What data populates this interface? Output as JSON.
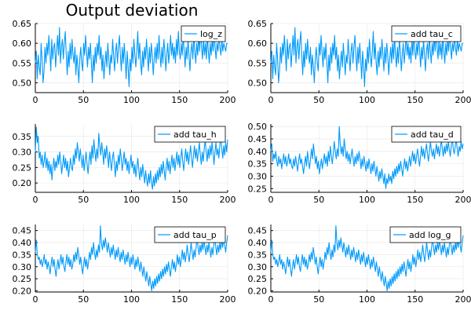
{
  "figure": {
    "title": "Output deviation"
  },
  "chart_data": [
    {
      "type": "line",
      "legend": "log_z",
      "legend_position": "top-right",
      "grid": true,
      "color": "#009AFA",
      "xlim": [
        0,
        200
      ],
      "ylim": [
        0.475,
        0.65
      ],
      "xticks": [
        0,
        50,
        100,
        150,
        200
      ],
      "yticks": [
        0.5,
        0.55,
        0.6,
        0.65
      ],
      "ytick_labels": [
        "0.50",
        "0.55",
        "0.60",
        "0.65"
      ],
      "y": [
        0.55,
        0.58,
        0.51,
        0.57,
        0.54,
        0.52,
        0.6,
        0.56,
        0.5,
        0.53,
        0.59,
        0.55,
        0.6,
        0.57,
        0.62,
        0.58,
        0.53,
        0.61,
        0.56,
        0.59,
        0.6,
        0.54,
        0.58,
        0.62,
        0.57,
        0.64,
        0.55,
        0.59,
        0.61,
        0.56,
        0.6,
        0.63,
        0.57,
        0.52,
        0.58,
        0.54,
        0.6,
        0.56,
        0.61,
        0.57,
        0.55,
        0.59,
        0.52,
        0.57,
        0.54,
        0.5,
        0.56,
        0.59,
        0.55,
        0.53,
        0.6,
        0.57,
        0.62,
        0.58,
        0.54,
        0.59,
        0.56,
        0.6,
        0.55,
        0.5,
        0.57,
        0.53,
        0.59,
        0.55,
        0.6,
        0.57,
        0.62,
        0.56,
        0.59,
        0.53,
        0.57,
        0.51,
        0.55,
        0.58,
        0.54,
        0.6,
        0.56,
        0.52,
        0.57,
        0.55,
        0.61,
        0.57,
        0.53,
        0.58,
        0.6,
        0.55,
        0.59,
        0.62,
        0.57,
        0.53,
        0.59,
        0.55,
        0.6,
        0.56,
        0.51,
        0.58,
        0.54,
        0.49,
        0.56,
        0.53,
        0.59,
        0.55,
        0.61,
        0.57,
        0.54,
        0.58,
        0.63,
        0.56,
        0.6,
        0.55,
        0.52,
        0.58,
        0.54,
        0.59,
        0.56,
        0.61,
        0.57,
        0.53,
        0.59,
        0.55,
        0.6,
        0.57,
        0.52,
        0.56,
        0.59,
        0.55,
        0.6,
        0.56,
        0.62,
        0.57,
        0.54,
        0.59,
        0.55,
        0.61,
        0.58,
        0.53,
        0.57,
        0.6,
        0.55,
        0.58,
        0.62,
        0.57,
        0.6,
        0.56,
        0.59,
        0.55,
        0.61,
        0.57,
        0.63,
        0.58,
        0.56,
        0.6,
        0.57,
        0.62,
        0.58,
        0.54,
        0.59,
        0.56,
        0.61,
        0.57,
        0.53,
        0.58,
        0.6,
        0.56,
        0.62,
        0.58,
        0.55,
        0.6,
        0.57,
        0.62,
        0.58,
        0.64,
        0.59,
        0.56,
        0.61,
        0.57,
        0.6,
        0.56,
        0.62,
        0.58,
        0.55,
        0.6,
        0.57,
        0.61,
        0.58,
        0.63,
        0.59,
        0.56,
        0.6,
        0.58,
        0.62,
        0.59,
        0.57,
        0.61,
        0.58,
        0.6,
        0.59,
        0.58,
        0.6,
        0.6
      ]
    },
    {
      "type": "line",
      "legend": "add tau_c",
      "legend_position": "top-right",
      "grid": true,
      "color": "#009AFA",
      "xlim": [
        0,
        200
      ],
      "ylim": [
        0.475,
        0.65
      ],
      "xticks": [
        0,
        50,
        100,
        150,
        200
      ],
      "yticks": [
        0.5,
        0.55,
        0.6,
        0.65
      ],
      "ytick_labels": [
        "0.50",
        "0.55",
        "0.60",
        "0.65"
      ],
      "y": [
        0.55,
        0.58,
        0.51,
        0.57,
        0.54,
        0.52,
        0.6,
        0.56,
        0.5,
        0.53,
        0.59,
        0.55,
        0.6,
        0.57,
        0.62,
        0.58,
        0.53,
        0.61,
        0.56,
        0.59,
        0.6,
        0.54,
        0.58,
        0.62,
        0.57,
        0.64,
        0.55,
        0.59,
        0.61,
        0.56,
        0.6,
        0.63,
        0.57,
        0.52,
        0.58,
        0.54,
        0.6,
        0.56,
        0.61,
        0.57,
        0.55,
        0.59,
        0.52,
        0.57,
        0.54,
        0.5,
        0.56,
        0.59,
        0.55,
        0.53,
        0.6,
        0.57,
        0.62,
        0.58,
        0.54,
        0.59,
        0.56,
        0.6,
        0.55,
        0.5,
        0.57,
        0.53,
        0.59,
        0.55,
        0.6,
        0.57,
        0.62,
        0.56,
        0.59,
        0.53,
        0.57,
        0.51,
        0.55,
        0.58,
        0.54,
        0.6,
        0.56,
        0.52,
        0.57,
        0.55,
        0.61,
        0.57,
        0.53,
        0.58,
        0.6,
        0.55,
        0.59,
        0.62,
        0.57,
        0.53,
        0.59,
        0.55,
        0.6,
        0.56,
        0.51,
        0.58,
        0.54,
        0.49,
        0.56,
        0.53,
        0.59,
        0.55,
        0.61,
        0.57,
        0.54,
        0.58,
        0.63,
        0.56,
        0.6,
        0.55,
        0.52,
        0.58,
        0.54,
        0.59,
        0.56,
        0.61,
        0.57,
        0.53,
        0.59,
        0.55,
        0.6,
        0.57,
        0.52,
        0.56,
        0.59,
        0.55,
        0.6,
        0.56,
        0.62,
        0.57,
        0.54,
        0.59,
        0.55,
        0.61,
        0.58,
        0.53,
        0.57,
        0.6,
        0.55,
        0.58,
        0.62,
        0.57,
        0.6,
        0.56,
        0.59,
        0.55,
        0.61,
        0.57,
        0.63,
        0.58,
        0.56,
        0.6,
        0.57,
        0.62,
        0.58,
        0.54,
        0.59,
        0.56,
        0.61,
        0.57,
        0.53,
        0.58,
        0.6,
        0.56,
        0.62,
        0.58,
        0.55,
        0.6,
        0.57,
        0.62,
        0.58,
        0.64,
        0.59,
        0.56,
        0.61,
        0.57,
        0.6,
        0.56,
        0.62,
        0.58,
        0.55,
        0.6,
        0.57,
        0.61,
        0.58,
        0.63,
        0.59,
        0.56,
        0.6,
        0.58,
        0.62,
        0.59,
        0.57,
        0.61,
        0.58,
        0.6,
        0.59,
        0.58,
        0.6,
        0.6
      ]
    },
    {
      "type": "line",
      "legend": "add tau_h",
      "legend_position": "top-right",
      "grid": true,
      "color": "#009AFA",
      "xlim": [
        0,
        200
      ],
      "ylim": [
        0.17,
        0.39
      ],
      "xticks": [
        0,
        50,
        100,
        150,
        200
      ],
      "yticks": [
        0.2,
        0.25,
        0.3,
        0.35
      ],
      "ytick_labels": [
        "0.20",
        "0.25",
        "0.30",
        "0.35"
      ],
      "y": [
        0.3,
        0.38,
        0.33,
        0.35,
        0.28,
        0.3,
        0.26,
        0.29,
        0.25,
        0.27,
        0.3,
        0.25,
        0.28,
        0.24,
        0.27,
        0.23,
        0.26,
        0.21,
        0.25,
        0.28,
        0.24,
        0.27,
        0.25,
        0.29,
        0.26,
        0.3,
        0.27,
        0.23,
        0.26,
        0.29,
        0.25,
        0.28,
        0.24,
        0.27,
        0.22,
        0.25,
        0.28,
        0.25,
        0.24,
        0.29,
        0.26,
        0.31,
        0.28,
        0.33,
        0.3,
        0.27,
        0.31,
        0.28,
        0.25,
        0.29,
        0.24,
        0.27,
        0.3,
        0.26,
        0.23,
        0.27,
        0.3,
        0.26,
        0.32,
        0.28,
        0.34,
        0.3,
        0.27,
        0.31,
        0.28,
        0.36,
        0.32,
        0.29,
        0.33,
        0.3,
        0.26,
        0.31,
        0.28,
        0.32,
        0.29,
        0.25,
        0.3,
        0.27,
        0.24,
        0.28,
        0.3,
        0.26,
        0.22,
        0.27,
        0.24,
        0.29,
        0.26,
        0.31,
        0.28,
        0.24,
        0.27,
        0.3,
        0.26,
        0.28,
        0.24,
        0.27,
        0.23,
        0.26,
        0.29,
        0.25,
        0.27,
        0.23,
        0.26,
        0.22,
        0.25,
        0.28,
        0.24,
        0.21,
        0.25,
        0.22,
        0.26,
        0.23,
        0.2,
        0.24,
        0.21,
        0.19,
        0.23,
        0.2,
        0.24,
        0.2,
        0.18,
        0.22,
        0.19,
        0.23,
        0.2,
        0.24,
        0.21,
        0.25,
        0.22,
        0.26,
        0.23,
        0.27,
        0.24,
        0.21,
        0.25,
        0.28,
        0.24,
        0.27,
        0.23,
        0.26,
        0.29,
        0.25,
        0.28,
        0.24,
        0.27,
        0.3,
        0.26,
        0.29,
        0.25,
        0.28,
        0.31,
        0.27,
        0.24,
        0.28,
        0.31,
        0.27,
        0.3,
        0.26,
        0.29,
        0.32,
        0.28,
        0.25,
        0.29,
        0.32,
        0.28,
        0.31,
        0.27,
        0.3,
        0.33,
        0.29,
        0.26,
        0.3,
        0.27,
        0.31,
        0.34,
        0.3,
        0.27,
        0.31,
        0.28,
        0.32,
        0.29,
        0.33,
        0.3,
        0.26,
        0.3,
        0.33,
        0.29,
        0.31,
        0.28,
        0.32,
        0.35,
        0.31,
        0.28,
        0.32,
        0.29,
        0.33,
        0.3,
        0.34
      ]
    },
    {
      "type": "line",
      "legend": "add tau_d",
      "legend_position": "top-right",
      "grid": true,
      "color": "#009AFA",
      "xlim": [
        0,
        200
      ],
      "ylim": [
        0.235,
        0.51
      ],
      "xticks": [
        0,
        50,
        100,
        150,
        200
      ],
      "yticks": [
        0.25,
        0.3,
        0.35,
        0.4,
        0.45,
        0.5
      ],
      "ytick_labels": [
        "0.25",
        "0.30",
        "0.35",
        "0.40",
        "0.45",
        "0.50"
      ],
      "y": [
        0.4,
        0.43,
        0.36,
        0.39,
        0.37,
        0.4,
        0.36,
        0.34,
        0.38,
        0.35,
        0.37,
        0.33,
        0.36,
        0.39,
        0.35,
        0.38,
        0.34,
        0.36,
        0.39,
        0.35,
        0.37,
        0.34,
        0.33,
        0.37,
        0.34,
        0.38,
        0.35,
        0.32,
        0.36,
        0.39,
        0.35,
        0.37,
        0.34,
        0.31,
        0.35,
        0.38,
        0.34,
        0.4,
        0.36,
        0.33,
        0.37,
        0.41,
        0.37,
        0.43,
        0.39,
        0.35,
        0.38,
        0.33,
        0.36,
        0.31,
        0.34,
        0.37,
        0.33,
        0.36,
        0.39,
        0.35,
        0.38,
        0.34,
        0.4,
        0.36,
        0.42,
        0.38,
        0.35,
        0.39,
        0.44,
        0.4,
        0.37,
        0.41,
        0.38,
        0.5,
        0.43,
        0.39,
        0.42,
        0.38,
        0.45,
        0.41,
        0.37,
        0.4,
        0.36,
        0.39,
        0.35,
        0.38,
        0.41,
        0.37,
        0.34,
        0.38,
        0.35,
        0.39,
        0.36,
        0.4,
        0.37,
        0.33,
        0.37,
        0.34,
        0.38,
        0.35,
        0.32,
        0.36,
        0.33,
        0.37,
        0.34,
        0.31,
        0.35,
        0.32,
        0.36,
        0.33,
        0.3,
        0.34,
        0.31,
        0.28,
        0.32,
        0.29,
        0.33,
        0.3,
        0.27,
        0.31,
        0.25,
        0.29,
        0.27,
        0.31,
        0.28,
        0.3,
        0.27,
        0.32,
        0.29,
        0.33,
        0.3,
        0.34,
        0.31,
        0.35,
        0.32,
        0.36,
        0.33,
        0.3,
        0.34,
        0.37,
        0.33,
        0.36,
        0.32,
        0.35,
        0.38,
        0.34,
        0.37,
        0.4,
        0.36,
        0.39,
        0.35,
        0.38,
        0.41,
        0.37,
        0.34,
        0.38,
        0.42,
        0.38,
        0.41,
        0.37,
        0.4,
        0.43,
        0.39,
        0.36,
        0.4,
        0.44,
        0.4,
        0.38,
        0.41,
        0.37,
        0.4,
        0.43,
        0.39,
        0.42,
        0.38,
        0.41,
        0.45,
        0.41,
        0.38,
        0.42,
        0.39,
        0.43,
        0.4,
        0.44,
        0.41,
        0.38,
        0.42,
        0.46,
        0.41,
        0.39,
        0.42,
        0.45,
        0.41,
        0.38,
        0.42,
        0.4,
        0.44,
        0.41,
        0.43
      ]
    },
    {
      "type": "line",
      "legend": "add tau_p",
      "legend_position": "top-right",
      "grid": true,
      "color": "#009AFA",
      "xlim": [
        0,
        200
      ],
      "ylim": [
        0.195,
        0.475
      ],
      "xticks": [
        0,
        50,
        100,
        150,
        200
      ],
      "yticks": [
        0.2,
        0.25,
        0.3,
        0.35,
        0.4,
        0.45
      ],
      "ytick_labels": [
        "0.20",
        "0.25",
        "0.30",
        "0.35",
        "0.40",
        "0.45"
      ],
      "y": [
        0.36,
        0.41,
        0.35,
        0.33,
        0.34,
        0.31,
        0.33,
        0.3,
        0.32,
        0.35,
        0.31,
        0.33,
        0.29,
        0.32,
        0.3,
        0.27,
        0.31,
        0.34,
        0.3,
        0.33,
        0.29,
        0.26,
        0.3,
        0.33,
        0.29,
        0.32,
        0.35,
        0.31,
        0.34,
        0.3,
        0.28,
        0.32,
        0.35,
        0.31,
        0.34,
        0.3,
        0.33,
        0.29,
        0.31,
        0.35,
        0.32,
        0.36,
        0.33,
        0.38,
        0.35,
        0.31,
        0.34,
        0.3,
        0.27,
        0.31,
        0.34,
        0.3,
        0.33,
        0.29,
        0.32,
        0.36,
        0.33,
        0.38,
        0.35,
        0.4,
        0.36,
        0.33,
        0.37,
        0.34,
        0.39,
        0.36,
        0.47,
        0.4,
        0.37,
        0.41,
        0.38,
        0.42,
        0.39,
        0.36,
        0.4,
        0.37,
        0.34,
        0.38,
        0.35,
        0.39,
        0.36,
        0.33,
        0.37,
        0.34,
        0.38,
        0.35,
        0.32,
        0.36,
        0.33,
        0.37,
        0.34,
        0.31,
        0.35,
        0.32,
        0.36,
        0.33,
        0.3,
        0.34,
        0.31,
        0.35,
        0.32,
        0.29,
        0.33,
        0.3,
        0.34,
        0.31,
        0.28,
        0.32,
        0.29,
        0.26,
        0.3,
        0.27,
        0.24,
        0.28,
        0.25,
        0.22,
        0.26,
        0.23,
        0.2,
        0.24,
        0.21,
        0.25,
        0.22,
        0.26,
        0.23,
        0.27,
        0.24,
        0.28,
        0.25,
        0.29,
        0.26,
        0.3,
        0.27,
        0.31,
        0.28,
        0.32,
        0.29,
        0.26,
        0.3,
        0.33,
        0.29,
        0.32,
        0.28,
        0.31,
        0.35,
        0.31,
        0.34,
        0.3,
        0.33,
        0.37,
        0.33,
        0.36,
        0.32,
        0.35,
        0.39,
        0.35,
        0.32,
        0.36,
        0.4,
        0.36,
        0.33,
        0.37,
        0.34,
        0.38,
        0.42,
        0.38,
        0.35,
        0.39,
        0.36,
        0.4,
        0.37,
        0.41,
        0.38,
        0.35,
        0.39,
        0.36,
        0.4,
        0.37,
        0.34,
        0.38,
        0.35,
        0.39,
        0.42,
        0.38,
        0.35,
        0.39,
        0.36,
        0.4,
        0.37,
        0.41,
        0.38,
        0.42,
        0.39,
        0.36,
        0.4,
        0.43
      ]
    },
    {
      "type": "line",
      "legend": "add log_g",
      "legend_position": "top-right",
      "grid": true,
      "color": "#009AFA",
      "xlim": [
        0,
        200
      ],
      "ylim": [
        0.195,
        0.475
      ],
      "xticks": [
        0,
        50,
        100,
        150,
        200
      ],
      "yticks": [
        0.2,
        0.25,
        0.3,
        0.35,
        0.4,
        0.45
      ],
      "ytick_labels": [
        "0.20",
        "0.25",
        "0.30",
        "0.35",
        "0.40",
        "0.45"
      ],
      "y": [
        0.36,
        0.41,
        0.35,
        0.33,
        0.34,
        0.31,
        0.33,
        0.3,
        0.32,
        0.35,
        0.31,
        0.33,
        0.29,
        0.32,
        0.3,
        0.27,
        0.31,
        0.34,
        0.3,
        0.33,
        0.29,
        0.26,
        0.3,
        0.33,
        0.29,
        0.32,
        0.35,
        0.31,
        0.34,
        0.3,
        0.28,
        0.32,
        0.35,
        0.31,
        0.34,
        0.3,
        0.33,
        0.29,
        0.31,
        0.35,
        0.32,
        0.36,
        0.33,
        0.38,
        0.35,
        0.31,
        0.34,
        0.3,
        0.27,
        0.31,
        0.34,
        0.3,
        0.33,
        0.29,
        0.32,
        0.36,
        0.33,
        0.38,
        0.35,
        0.4,
        0.36,
        0.33,
        0.37,
        0.34,
        0.39,
        0.36,
        0.47,
        0.4,
        0.37,
        0.41,
        0.38,
        0.42,
        0.39,
        0.36,
        0.4,
        0.37,
        0.34,
        0.38,
        0.35,
        0.39,
        0.36,
        0.33,
        0.37,
        0.34,
        0.38,
        0.35,
        0.32,
        0.36,
        0.33,
        0.37,
        0.34,
        0.31,
        0.35,
        0.32,
        0.36,
        0.33,
        0.3,
        0.34,
        0.31,
        0.35,
        0.32,
        0.29,
        0.33,
        0.3,
        0.34,
        0.31,
        0.28,
        0.32,
        0.29,
        0.26,
        0.3,
        0.27,
        0.24,
        0.28,
        0.25,
        0.22,
        0.26,
        0.23,
        0.2,
        0.24,
        0.21,
        0.25,
        0.22,
        0.26,
        0.23,
        0.27,
        0.24,
        0.28,
        0.25,
        0.29,
        0.26,
        0.3,
        0.27,
        0.31,
        0.28,
        0.32,
        0.29,
        0.26,
        0.3,
        0.33,
        0.29,
        0.32,
        0.28,
        0.31,
        0.35,
        0.31,
        0.34,
        0.3,
        0.33,
        0.37,
        0.33,
        0.36,
        0.32,
        0.35,
        0.39,
        0.35,
        0.32,
        0.36,
        0.4,
        0.36,
        0.33,
        0.37,
        0.34,
        0.38,
        0.42,
        0.38,
        0.35,
        0.39,
        0.36,
        0.4,
        0.37,
        0.41,
        0.38,
        0.35,
        0.39,
        0.36,
        0.4,
        0.37,
        0.34,
        0.38,
        0.35,
        0.39,
        0.42,
        0.38,
        0.35,
        0.39,
        0.36,
        0.4,
        0.37,
        0.41,
        0.38,
        0.42,
        0.39,
        0.36,
        0.4,
        0.43
      ]
    }
  ]
}
